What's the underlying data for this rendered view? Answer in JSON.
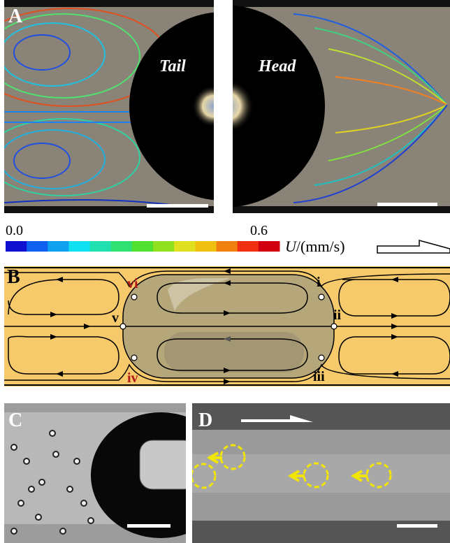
{
  "panel_a": {
    "label": "A",
    "tail": "Tail",
    "head": "Head"
  },
  "colorbar": {
    "min": "0.0",
    "max": "0.6",
    "symbol": "U",
    "unit": "/(mm/s)"
  },
  "panel_b": {
    "label": "B",
    "points": [
      "i",
      "ii",
      "iii",
      "iv",
      "v",
      "vi"
    ]
  },
  "panel_c": {
    "label": "C"
  },
  "panel_d": {
    "label": "D"
  }
}
